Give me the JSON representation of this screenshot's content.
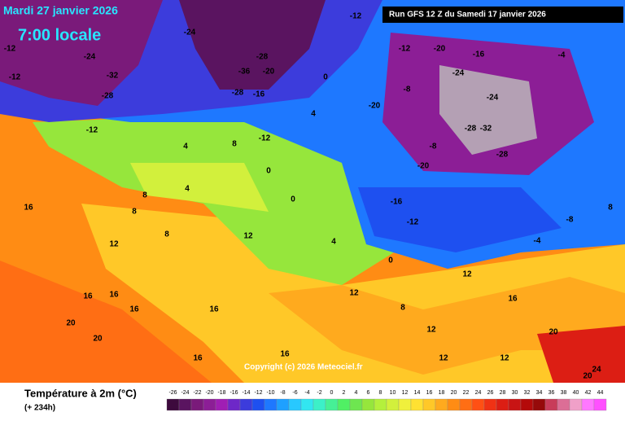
{
  "header": {
    "date": "Mardi 27 janvier 2026",
    "time": "7:00 locale",
    "run": "Run GFS 12 Z du Samedi 17 janvier 2026",
    "copyright": "Copyright (c) 2026 Meteociel.fr"
  },
  "footer": {
    "title": "Température à 2m (°C)",
    "lead": "(+ 234h)"
  },
  "legend": {
    "ticks": [
      -26,
      -24,
      -22,
      -20,
      -18,
      -16,
      -14,
      -12,
      -10,
      -8,
      -6,
      -4,
      -2,
      0,
      2,
      4,
      6,
      8,
      10,
      12,
      14,
      16,
      18,
      20,
      22,
      24,
      26,
      28,
      30,
      32,
      34,
      36,
      38,
      40,
      42,
      44
    ],
    "colors": [
      "#3d0a3d",
      "#5a1460",
      "#7a1a7a",
      "#8c1e96",
      "#a01eb4",
      "#6e28c8",
      "#3c3cdc",
      "#1e50f0",
      "#1e78ff",
      "#1ea0ff",
      "#28c8ff",
      "#32e6f0",
      "#3cf0c8",
      "#46f096",
      "#50f064",
      "#6ee650",
      "#96e63c",
      "#b4f03c",
      "#d2f03c",
      "#f0f03c",
      "#ffe132",
      "#ffc828",
      "#ffaa1e",
      "#ff8c14",
      "#ff6e14",
      "#ff5014",
      "#f03214",
      "#dc1e14",
      "#c81414",
      "#b40a0a",
      "#960a0a",
      "#c83c5a",
      "#dc6e96",
      "#f0a0c8",
      "#ff78ff",
      "#ff50ff"
    ]
  },
  "map_labels": [
    -12,
    -24,
    -32,
    -28,
    -12,
    -12,
    -12,
    -24,
    -28,
    -36,
    -20,
    -16,
    -28,
    -12,
    -20,
    -16,
    -24,
    -8,
    -20,
    -24,
    -28,
    -32,
    -28,
    -20,
    -8,
    -16,
    -12,
    -4,
    0,
    4,
    -12,
    4,
    8,
    4,
    16,
    8,
    12,
    8,
    16,
    16,
    16,
    16,
    20,
    20,
    16,
    4,
    0,
    12,
    12,
    16,
    12,
    20,
    24,
    20,
    -8,
    12,
    16,
    8,
    -4,
    0,
    8,
    12,
    0,
    12,
    8
  ]
}
